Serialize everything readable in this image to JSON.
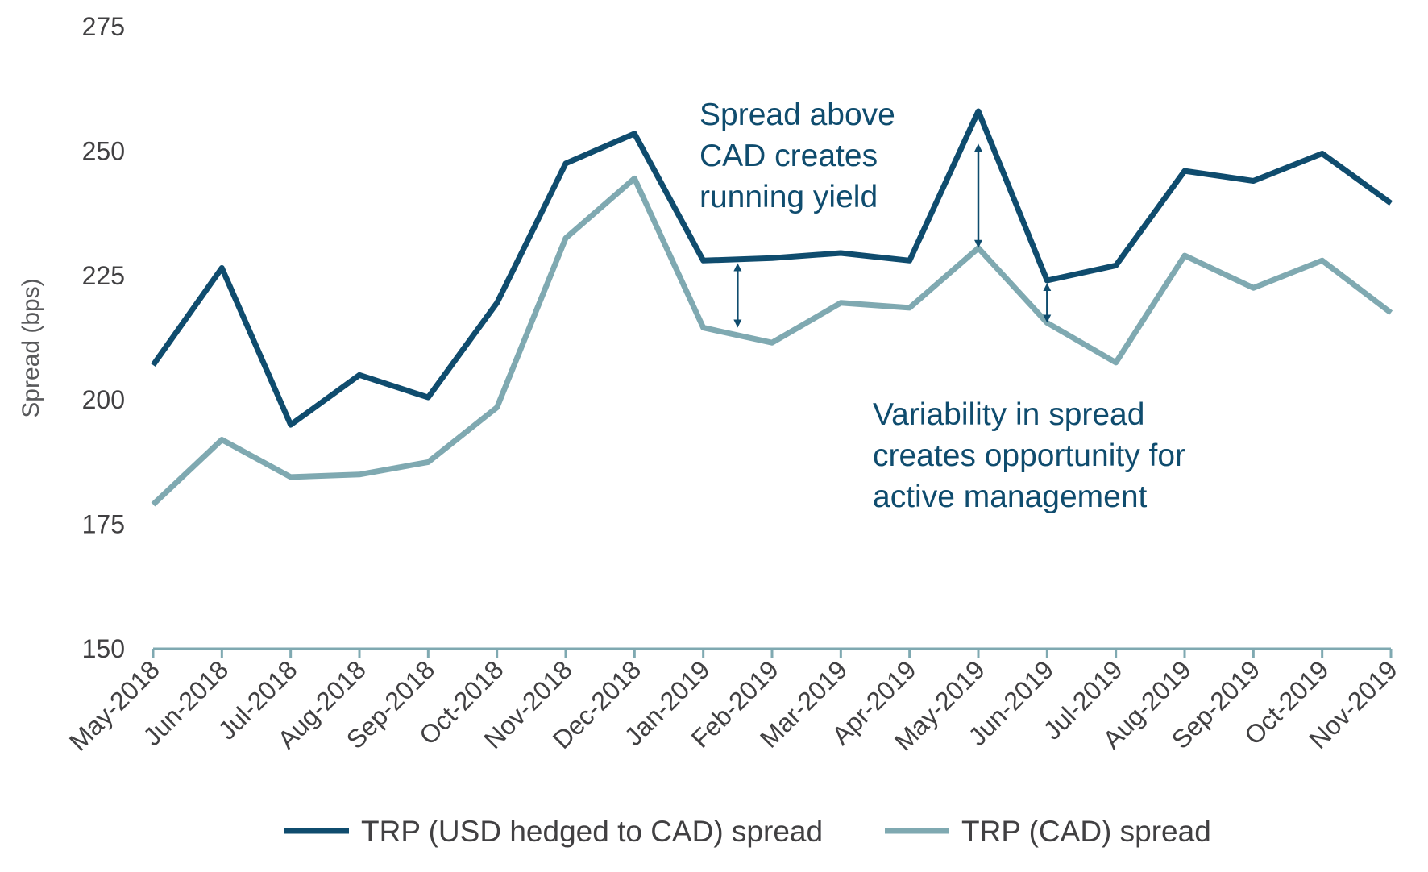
{
  "chart_data": {
    "type": "line",
    "ylabel": "Spread (bps)",
    "ylim": [
      150,
      275
    ],
    "yticks": [
      150,
      175,
      200,
      225,
      250,
      275
    ],
    "categories": [
      "May-2018",
      "Jun-2018",
      "Jul-2018",
      "Aug-2018",
      "Sep-2018",
      "Oct-2018",
      "Nov-2018",
      "Dec-2018",
      "Jan-2019",
      "Feb-2019",
      "Mar-2019",
      "Apr-2019",
      "May-2019",
      "Jun-2019",
      "Jul-2019",
      "Aug-2019",
      "Sep-2019",
      "Oct-2019",
      "Nov-2019"
    ],
    "series": [
      {
        "name": "TRP (USD hedged to CAD) spread",
        "color": "#0f4c6e",
        "values": [
          207,
          226.5,
          195,
          205,
          200.5,
          219.5,
          247.5,
          253.5,
          228,
          228.5,
          229.5,
          228,
          258,
          224,
          227,
          246,
          244,
          249.5,
          239.5
        ]
      },
      {
        "name": "TRP (CAD) spread",
        "color": "#7fa9b1",
        "values": [
          179,
          192,
          184.5,
          185,
          187.5,
          198.5,
          232.5,
          244.5,
          214.5,
          211.5,
          219.5,
          218.5,
          230.5,
          215.5,
          207.5,
          229,
          222.5,
          228,
          217.5
        ]
      }
    ],
    "annotations": [
      {
        "lines": [
          "Spread above",
          "CAD creates",
          "running yield"
        ]
      },
      {
        "lines": [
          "Variability in spread",
          "creates opportunity for",
          "active management"
        ]
      }
    ],
    "arrows": [
      {
        "x_between": [
          8,
          9
        ],
        "from": 227,
        "to": 215
      },
      {
        "x_index": 12,
        "from": 251,
        "to": 231
      },
      {
        "x_index": 13,
        "from": 223,
        "to": 216
      }
    ],
    "legend_position": "bottom-center",
    "grid": false,
    "axis_color": "#7fa9b1",
    "annotation_color": "#0f4c6e"
  }
}
